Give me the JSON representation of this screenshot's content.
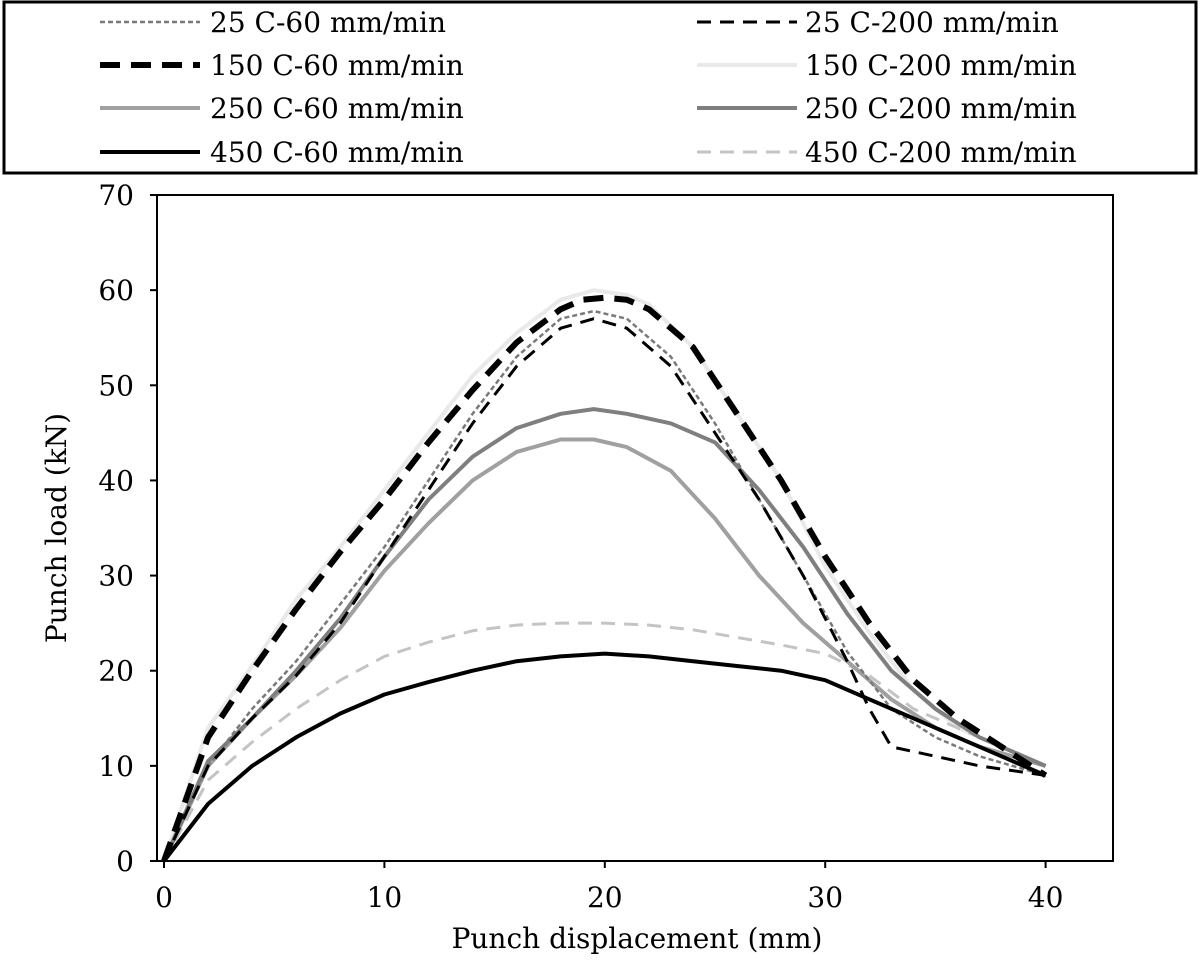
{
  "chart_data": {
    "type": "line",
    "title": "",
    "xlabel": "Punch displacement (mm)",
    "ylabel": "Punch load (kN)",
    "xlim": [
      0,
      43
    ],
    "ylim": [
      0,
      70
    ],
    "xticks": [
      0,
      10,
      20,
      30,
      40
    ],
    "yticks": [
      0,
      10,
      20,
      30,
      40,
      50,
      60,
      70
    ],
    "grid": false,
    "legend_position": "top",
    "series": [
      {
        "name": "25 C-60 mm/min",
        "style": "fine-dash",
        "color": "#7a7a7a",
        "x": [
          0,
          2,
          4,
          6,
          8,
          10,
          12,
          14,
          16,
          18,
          19.5,
          21,
          23,
          25,
          27,
          29,
          31,
          33,
          35,
          37,
          40
        ],
        "y": [
          0,
          10,
          16,
          21,
          27,
          33,
          40,
          47,
          53,
          57,
          57.8,
          57,
          53,
          46,
          38,
          30,
          22,
          16,
          13,
          11,
          9
        ]
      },
      {
        "name": "25 C-200 mm/min",
        "style": "dash",
        "color": "#000000",
        "x": [
          0,
          2,
          4,
          6,
          8,
          10,
          12,
          14,
          16,
          18,
          19.5,
          21,
          23,
          25,
          27,
          29,
          31,
          32,
          33,
          35,
          37,
          40
        ],
        "y": [
          0,
          10,
          15,
          19.5,
          25,
          32,
          39,
          46,
          52,
          56,
          57,
          56,
          52,
          45,
          38,
          30,
          21,
          16,
          12,
          11,
          10,
          9
        ]
      },
      {
        "name": "150 C-60 mm/min",
        "style": "thick-dash",
        "color": "#000000",
        "x": [
          0,
          2,
          4,
          6,
          8,
          10,
          12,
          14,
          16,
          18,
          19,
          20,
          21,
          22,
          24,
          26,
          28,
          30,
          32,
          34,
          36,
          38,
          40
        ],
        "y": [
          0,
          13,
          20,
          26.5,
          32.5,
          38,
          44,
          49.5,
          54.5,
          58,
          59,
          59.2,
          59,
          58,
          54,
          47,
          40,
          32,
          25,
          19,
          15,
          12,
          9
        ]
      },
      {
        "name": "150 C-200 mm/min",
        "style": "solid",
        "color": "#e9e9e9",
        "x": [
          0,
          2,
          4,
          6,
          8,
          10,
          12,
          14,
          16,
          18,
          19.5,
          21,
          22,
          24,
          26,
          28,
          30,
          32,
          34,
          36,
          38,
          40
        ],
        "y": [
          0,
          14,
          20.5,
          27.5,
          33,
          39,
          45,
          51,
          55.5,
          59,
          60,
          59.5,
          58.5,
          54,
          47,
          40,
          31,
          24,
          18,
          14,
          12,
          10
        ]
      },
      {
        "name": "250 C-60 mm/min",
        "style": "solid",
        "color": "#a0a0a0",
        "x": [
          0,
          2,
          4,
          6,
          8,
          10,
          12,
          14,
          16,
          18,
          19.5,
          21,
          23,
          25,
          27,
          29,
          31,
          33,
          35,
          37,
          40
        ],
        "y": [
          0,
          10,
          15,
          19.5,
          24.5,
          30.5,
          35.5,
          40,
          43,
          44.3,
          44.3,
          43.5,
          41,
          36,
          30,
          25,
          21,
          17,
          14,
          12,
          10
        ]
      },
      {
        "name": "250 C-200 mm/min",
        "style": "solid",
        "color": "#7f7f7f",
        "x": [
          0,
          2,
          4,
          6,
          8,
          10,
          12,
          14,
          16,
          18,
          19.5,
          21,
          23,
          25,
          27,
          29,
          31,
          33,
          35,
          37,
          40
        ],
        "y": [
          0,
          10.5,
          15,
          20,
          25.5,
          32,
          38,
          42.5,
          45.5,
          47,
          47.5,
          47,
          46,
          44,
          39,
          33,
          26,
          20,
          16,
          13,
          10
        ]
      },
      {
        "name": "450 C-60 mm/min",
        "style": "solid",
        "color": "#000000",
        "x": [
          0,
          2,
          4,
          6,
          8,
          10,
          12,
          14,
          16,
          18,
          20,
          22,
          24,
          26,
          28,
          30,
          32,
          34,
          36,
          38,
          40
        ],
        "y": [
          0,
          6,
          10,
          13,
          15.5,
          17.5,
          18.8,
          20,
          21,
          21.5,
          21.8,
          21.5,
          21,
          20.5,
          20,
          19,
          17,
          15,
          13,
          11,
          9
        ]
      },
      {
        "name": "450 C-200 mm/min",
        "style": "dash",
        "color": "#c4c4c4",
        "x": [
          0,
          2,
          4,
          6,
          8,
          10,
          12,
          14,
          16,
          18,
          20,
          22,
          24,
          26,
          28,
          30,
          32,
          34,
          36,
          38,
          40
        ],
        "y": [
          0,
          8.5,
          12.5,
          16,
          19,
          21.5,
          23,
          24.2,
          24.8,
          25,
          25,
          24.8,
          24.3,
          23.5,
          22.7,
          21.8,
          19.5,
          16,
          14,
          12,
          10
        ]
      }
    ]
  }
}
